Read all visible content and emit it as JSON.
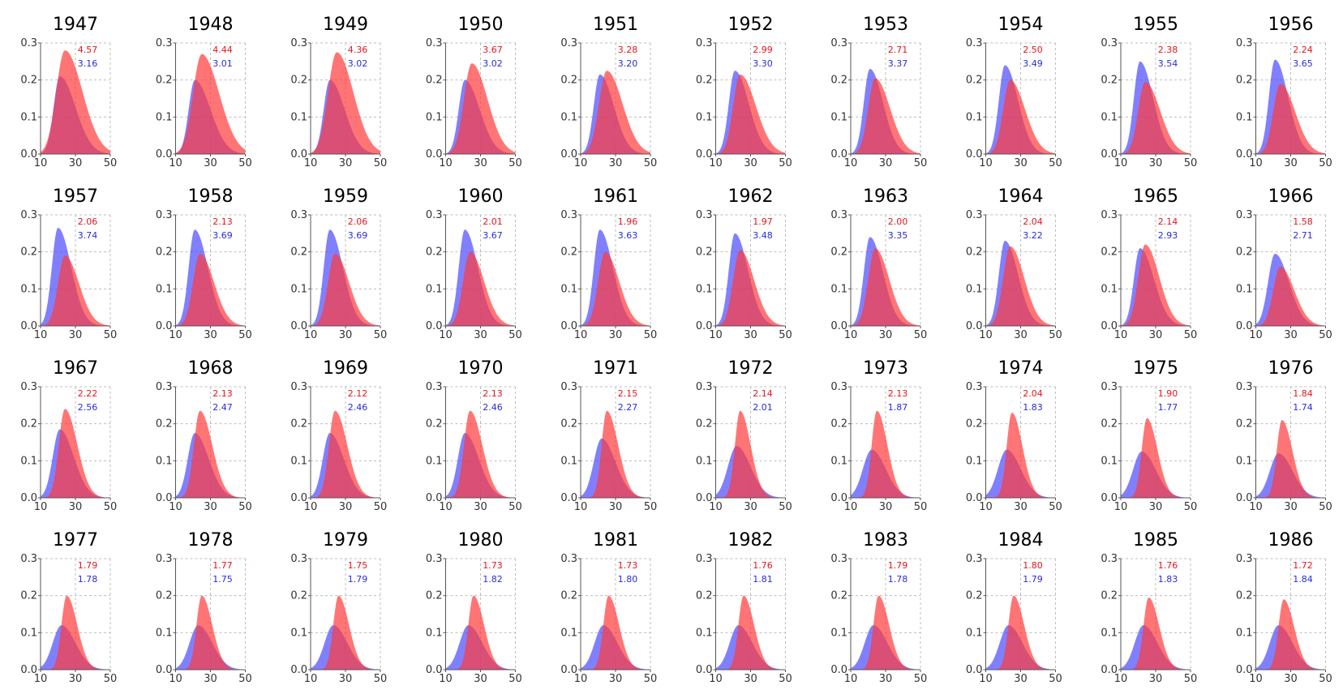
{
  "chart_data": {
    "type": "area",
    "layout": {
      "rows": 4,
      "cols": 10
    },
    "xlim": [
      10,
      50
    ],
    "ylim": [
      0,
      0.3
    ],
    "x_ticks": [
      10,
      30,
      50
    ],
    "x_tick_labels": [
      "10",
      "30",
      "50"
    ],
    "y_ticks": [
      0,
      0.1,
      0.2,
      0.3
    ],
    "y_tick_labels": [
      "0.0",
      "0.1",
      "0.2",
      "0.3"
    ],
    "grid": true,
    "colors": {
      "red": "#ff3b3b",
      "blue": "#4a4aff",
      "red_text": "#e8141c",
      "blue_text": "#2a2ae0"
    },
    "panels": [
      {
        "title": "1947",
        "red_value": "4.57",
        "blue_value": "3.16",
        "red": {
          "mode": 24,
          "peak": 0.28,
          "sl": 5,
          "sr": 10
        },
        "blue": {
          "mode": 21,
          "peak": 0.21,
          "sl": 3.5,
          "sr": 9
        }
      },
      {
        "title": "1948",
        "red_value": "4.44",
        "blue_value": "3.01",
        "red": {
          "mode": 25,
          "peak": 0.27,
          "sl": 5,
          "sr": 10
        },
        "blue": {
          "mode": 21,
          "peak": 0.2,
          "sl": 3.5,
          "sr": 9
        }
      },
      {
        "title": "1949",
        "red_value": "4.36",
        "blue_value": "3.02",
        "red": {
          "mode": 25,
          "peak": 0.275,
          "sl": 5,
          "sr": 9.5
        },
        "blue": {
          "mode": 21,
          "peak": 0.2,
          "sl": 3.5,
          "sr": 8.5
        }
      },
      {
        "title": "1950",
        "red_value": "3.67",
        "blue_value": "3.02",
        "red": {
          "mode": 25,
          "peak": 0.245,
          "sl": 4.5,
          "sr": 9
        },
        "blue": {
          "mode": 21,
          "peak": 0.2,
          "sl": 3.5,
          "sr": 8.5
        }
      },
      {
        "title": "1951",
        "red_value": "3.28",
        "blue_value": "3.20",
        "red": {
          "mode": 25,
          "peak": 0.225,
          "sl": 4.5,
          "sr": 9
        },
        "blue": {
          "mode": 21,
          "peak": 0.215,
          "sl": 3.5,
          "sr": 8
        }
      },
      {
        "title": "1952",
        "red_value": "2.99",
        "blue_value": "3.30",
        "red": {
          "mode": 24,
          "peak": 0.215,
          "sl": 4,
          "sr": 9
        },
        "blue": {
          "mode": 21,
          "peak": 0.225,
          "sl": 3.5,
          "sr": 8
        }
      },
      {
        "title": "1953",
        "red_value": "2.71",
        "blue_value": "3.37",
        "red": {
          "mode": 24,
          "peak": 0.205,
          "sl": 4,
          "sr": 8.5
        },
        "blue": {
          "mode": 21,
          "peak": 0.23,
          "sl": 3.5,
          "sr": 7.5
        }
      },
      {
        "title": "1954",
        "red_value": "2.50",
        "blue_value": "3.49",
        "red": {
          "mode": 24,
          "peak": 0.2,
          "sl": 4,
          "sr": 8.5
        },
        "blue": {
          "mode": 21,
          "peak": 0.24,
          "sl": 3.5,
          "sr": 7.5
        }
      },
      {
        "title": "1955",
        "red_value": "2.38",
        "blue_value": "3.54",
        "red": {
          "mode": 24,
          "peak": 0.195,
          "sl": 4,
          "sr": 8.5
        },
        "blue": {
          "mode": 21,
          "peak": 0.25,
          "sl": 3.5,
          "sr": 7.5
        }
      },
      {
        "title": "1956",
        "red_value": "2.24",
        "blue_value": "3.65",
        "red": {
          "mode": 24,
          "peak": 0.19,
          "sl": 4,
          "sr": 8.5
        },
        "blue": {
          "mode": 21,
          "peak": 0.255,
          "sl": 3.5,
          "sr": 7.5
        }
      },
      {
        "title": "1957",
        "red_value": "2.06",
        "blue_value": "3.74",
        "red": {
          "mode": 24,
          "peak": 0.19,
          "sl": 4,
          "sr": 8
        },
        "blue": {
          "mode": 20,
          "peak": 0.265,
          "sl": 3.5,
          "sr": 7.5
        }
      },
      {
        "title": "1958",
        "red_value": "2.13",
        "blue_value": "3.69",
        "red": {
          "mode": 24,
          "peak": 0.195,
          "sl": 4,
          "sr": 8
        },
        "blue": {
          "mode": 21,
          "peak": 0.26,
          "sl": 3.5,
          "sr": 7.5
        }
      },
      {
        "title": "1959",
        "red_value": "2.06",
        "blue_value": "3.69",
        "red": {
          "mode": 24,
          "peak": 0.195,
          "sl": 4,
          "sr": 8
        },
        "blue": {
          "mode": 21,
          "peak": 0.26,
          "sl": 3.5,
          "sr": 7.5
        }
      },
      {
        "title": "1960",
        "red_value": "2.01",
        "blue_value": "3.67",
        "red": {
          "mode": 24,
          "peak": 0.2,
          "sl": 4,
          "sr": 8
        },
        "blue": {
          "mode": 21,
          "peak": 0.26,
          "sl": 3.5,
          "sr": 7.5
        }
      },
      {
        "title": "1961",
        "red_value": "1.96",
        "blue_value": "3.63",
        "red": {
          "mode": 24,
          "peak": 0.2,
          "sl": 4,
          "sr": 8
        },
        "blue": {
          "mode": 21,
          "peak": 0.26,
          "sl": 3.5,
          "sr": 7.5
        }
      },
      {
        "title": "1962",
        "red_value": "1.97",
        "blue_value": "3.48",
        "red": {
          "mode": 24,
          "peak": 0.205,
          "sl": 4,
          "sr": 8
        },
        "blue": {
          "mode": 21,
          "peak": 0.25,
          "sl": 3.5,
          "sr": 7.5
        }
      },
      {
        "title": "1963",
        "red_value": "2.00",
        "blue_value": "3.35",
        "red": {
          "mode": 24,
          "peak": 0.21,
          "sl": 4,
          "sr": 8
        },
        "blue": {
          "mode": 21,
          "peak": 0.24,
          "sl": 3.5,
          "sr": 7.5
        }
      },
      {
        "title": "1964",
        "red_value": "2.04",
        "blue_value": "3.22",
        "red": {
          "mode": 24,
          "peak": 0.215,
          "sl": 4,
          "sr": 8
        },
        "blue": {
          "mode": 21,
          "peak": 0.23,
          "sl": 3.5,
          "sr": 7.5
        }
      },
      {
        "title": "1965",
        "red_value": "2.14",
        "blue_value": "2.93",
        "red": {
          "mode": 24,
          "peak": 0.22,
          "sl": 4,
          "sr": 8
        },
        "blue": {
          "mode": 21,
          "peak": 0.21,
          "sl": 3.5,
          "sr": 8
        }
      },
      {
        "title": "1966",
        "red_value": "1.58",
        "blue_value": "2.71",
        "red": {
          "mode": 24,
          "peak": 0.16,
          "sl": 4,
          "sr": 8
        },
        "blue": {
          "mode": 21,
          "peak": 0.195,
          "sl": 4,
          "sr": 8
        }
      },
      {
        "title": "1967",
        "red_value": "2.22",
        "blue_value": "2.56",
        "red": {
          "mode": 24,
          "peak": 0.24,
          "sl": 3.5,
          "sr": 7
        },
        "blue": {
          "mode": 21,
          "peak": 0.185,
          "sl": 4,
          "sr": 8
        }
      },
      {
        "title": "1968",
        "red_value": "2.13",
        "blue_value": "2.47",
        "red": {
          "mode": 24,
          "peak": 0.235,
          "sl": 3.5,
          "sr": 7
        },
        "blue": {
          "mode": 21,
          "peak": 0.175,
          "sl": 4,
          "sr": 8
        }
      },
      {
        "title": "1969",
        "red_value": "2.12",
        "blue_value": "2.46",
        "red": {
          "mode": 24,
          "peak": 0.235,
          "sl": 3.5,
          "sr": 7
        },
        "blue": {
          "mode": 21,
          "peak": 0.175,
          "sl": 4,
          "sr": 8
        }
      },
      {
        "title": "1970",
        "red_value": "2.13",
        "blue_value": "2.46",
        "red": {
          "mode": 24,
          "peak": 0.235,
          "sl": 3.5,
          "sr": 7
        },
        "blue": {
          "mode": 21,
          "peak": 0.175,
          "sl": 4,
          "sr": 8
        }
      },
      {
        "title": "1971",
        "red_value": "2.15",
        "blue_value": "2.27",
        "red": {
          "mode": 25,
          "peak": 0.235,
          "sl": 3,
          "sr": 6.5
        },
        "blue": {
          "mode": 22,
          "peak": 0.16,
          "sl": 4.5,
          "sr": 8
        }
      },
      {
        "title": "1972",
        "red_value": "2.14",
        "blue_value": "2.01",
        "red": {
          "mode": 24,
          "peak": 0.235,
          "sl": 3,
          "sr": 6
        },
        "blue": {
          "mode": 22,
          "peak": 0.14,
          "sl": 5,
          "sr": 8
        }
      },
      {
        "title": "1973",
        "red_value": "2.13",
        "blue_value": "1.87",
        "red": {
          "mode": 25,
          "peak": 0.235,
          "sl": 3,
          "sr": 6
        },
        "blue": {
          "mode": 22,
          "peak": 0.13,
          "sl": 5,
          "sr": 8
        }
      },
      {
        "title": "1974",
        "red_value": "2.04",
        "blue_value": "1.83",
        "red": {
          "mode": 25,
          "peak": 0.23,
          "sl": 3,
          "sr": 6
        },
        "blue": {
          "mode": 22,
          "peak": 0.13,
          "sl": 5,
          "sr": 8
        }
      },
      {
        "title": "1975",
        "red_value": "1.90",
        "blue_value": "1.77",
        "red": {
          "mode": 25,
          "peak": 0.215,
          "sl": 3,
          "sr": 6
        },
        "blue": {
          "mode": 22,
          "peak": 0.125,
          "sl": 5,
          "sr": 8
        }
      },
      {
        "title": "1976",
        "red_value": "1.84",
        "blue_value": "1.74",
        "red": {
          "mode": 25,
          "peak": 0.21,
          "sl": 3,
          "sr": 6
        },
        "blue": {
          "mode": 23,
          "peak": 0.12,
          "sl": 5,
          "sr": 8
        }
      },
      {
        "title": "1977",
        "red_value": "1.79",
        "blue_value": "1.78",
        "red": {
          "mode": 25,
          "peak": 0.2,
          "sl": 3,
          "sr": 6
        },
        "blue": {
          "mode": 22,
          "peak": 0.12,
          "sl": 5,
          "sr": 8
        }
      },
      {
        "title": "1978",
        "red_value": "1.77",
        "blue_value": "1.75",
        "red": {
          "mode": 25,
          "peak": 0.2,
          "sl": 3,
          "sr": 6
        },
        "blue": {
          "mode": 23,
          "peak": 0.12,
          "sl": 5,
          "sr": 8
        }
      },
      {
        "title": "1979",
        "red_value": "1.75",
        "blue_value": "1.79",
        "red": {
          "mode": 26,
          "peak": 0.2,
          "sl": 3,
          "sr": 6
        },
        "blue": {
          "mode": 23,
          "peak": 0.12,
          "sl": 5,
          "sr": 8
        }
      },
      {
        "title": "1980",
        "red_value": "1.73",
        "blue_value": "1.82",
        "red": {
          "mode": 26,
          "peak": 0.2,
          "sl": 3,
          "sr": 6
        },
        "blue": {
          "mode": 23,
          "peak": 0.12,
          "sl": 5,
          "sr": 8
        }
      },
      {
        "title": "1981",
        "red_value": "1.73",
        "blue_value": "1.80",
        "red": {
          "mode": 26,
          "peak": 0.2,
          "sl": 3,
          "sr": 6
        },
        "blue": {
          "mode": 23,
          "peak": 0.12,
          "sl": 5,
          "sr": 8
        }
      },
      {
        "title": "1982",
        "red_value": "1.76",
        "blue_value": "1.81",
        "red": {
          "mode": 26,
          "peak": 0.2,
          "sl": 3,
          "sr": 6
        },
        "blue": {
          "mode": 23,
          "peak": 0.12,
          "sl": 5,
          "sr": 8
        }
      },
      {
        "title": "1983",
        "red_value": "1.79",
        "blue_value": "1.78",
        "red": {
          "mode": 26,
          "peak": 0.2,
          "sl": 3,
          "sr": 6
        },
        "blue": {
          "mode": 23,
          "peak": 0.12,
          "sl": 5,
          "sr": 8
        }
      },
      {
        "title": "1984",
        "red_value": "1.80",
        "blue_value": "1.79",
        "red": {
          "mode": 26,
          "peak": 0.2,
          "sl": 3,
          "sr": 6
        },
        "blue": {
          "mode": 23,
          "peak": 0.12,
          "sl": 5,
          "sr": 8
        }
      },
      {
        "title": "1985",
        "red_value": "1.76",
        "blue_value": "1.83",
        "red": {
          "mode": 26,
          "peak": 0.195,
          "sl": 3,
          "sr": 6
        },
        "blue": {
          "mode": 23,
          "peak": 0.12,
          "sl": 5,
          "sr": 8
        }
      },
      {
        "title": "1986",
        "red_value": "1.72",
        "blue_value": "1.84",
        "red": {
          "mode": 26,
          "peak": 0.19,
          "sl": 3,
          "sr": 6
        },
        "blue": {
          "mode": 23,
          "peak": 0.12,
          "sl": 5,
          "sr": 8
        }
      }
    ]
  }
}
